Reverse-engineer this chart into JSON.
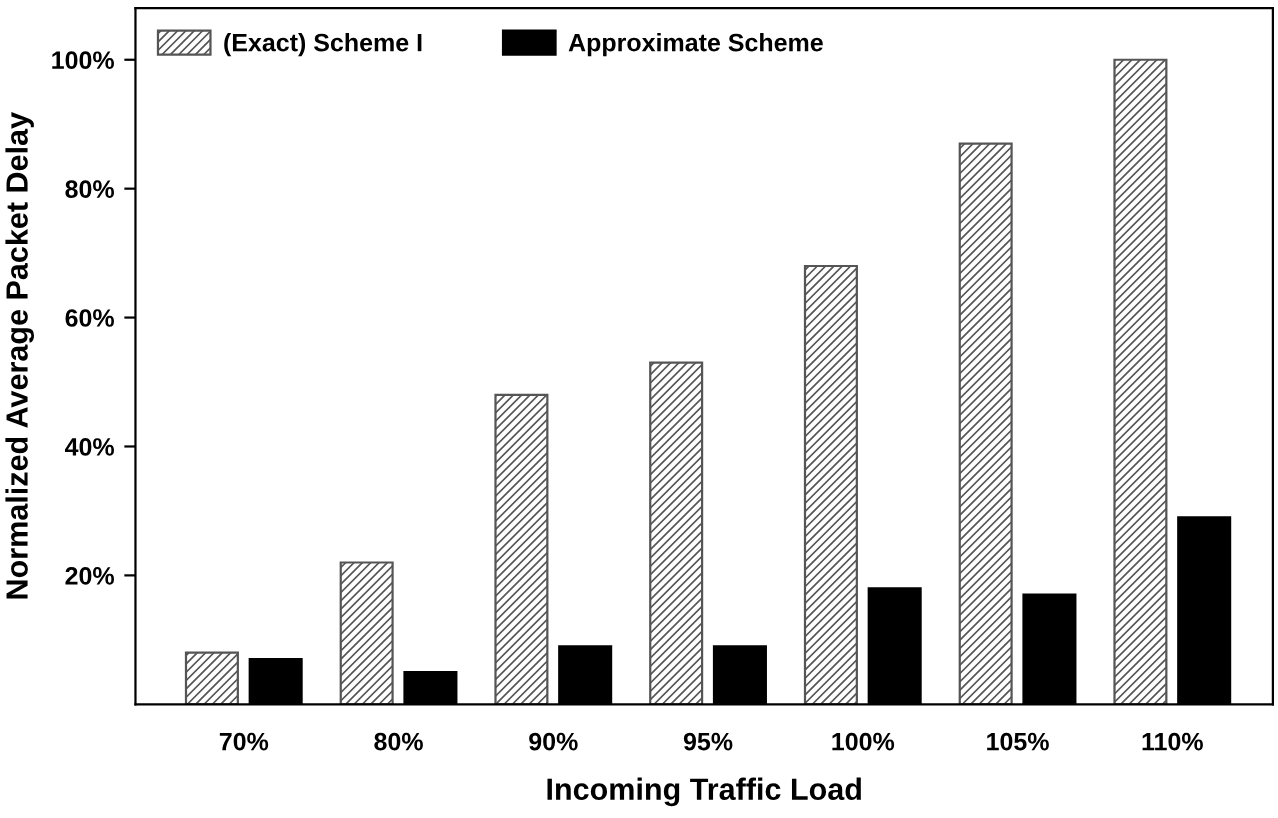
{
  "chart_data": {
    "type": "bar",
    "xlabel": "Incoming Traffic Load",
    "ylabel": "Normalized Average Packet Delay",
    "categories": [
      "70%",
      "80%",
      "90%",
      "95%",
      "100%",
      "105%",
      "110%"
    ],
    "series": [
      {
        "name": "(Exact) Scheme I",
        "color": "#555555",
        "values": [
          8,
          22,
          48,
          53,
          68,
          87,
          100
        ]
      },
      {
        "name": "Approximate Scheme",
        "color": "#000000",
        "values": [
          7,
          5,
          9,
          9,
          18,
          17,
          29
        ]
      }
    ],
    "ylim": [
      0,
      108
    ],
    "yticks": [
      {
        "value": 20,
        "label": "20%"
      },
      {
        "value": 40,
        "label": "40%"
      },
      {
        "value": 60,
        "label": "60%"
      },
      {
        "value": 80,
        "label": "80%"
      },
      {
        "value": 100,
        "label": "100%"
      }
    ],
    "grid": false,
    "legend": "top left"
  }
}
